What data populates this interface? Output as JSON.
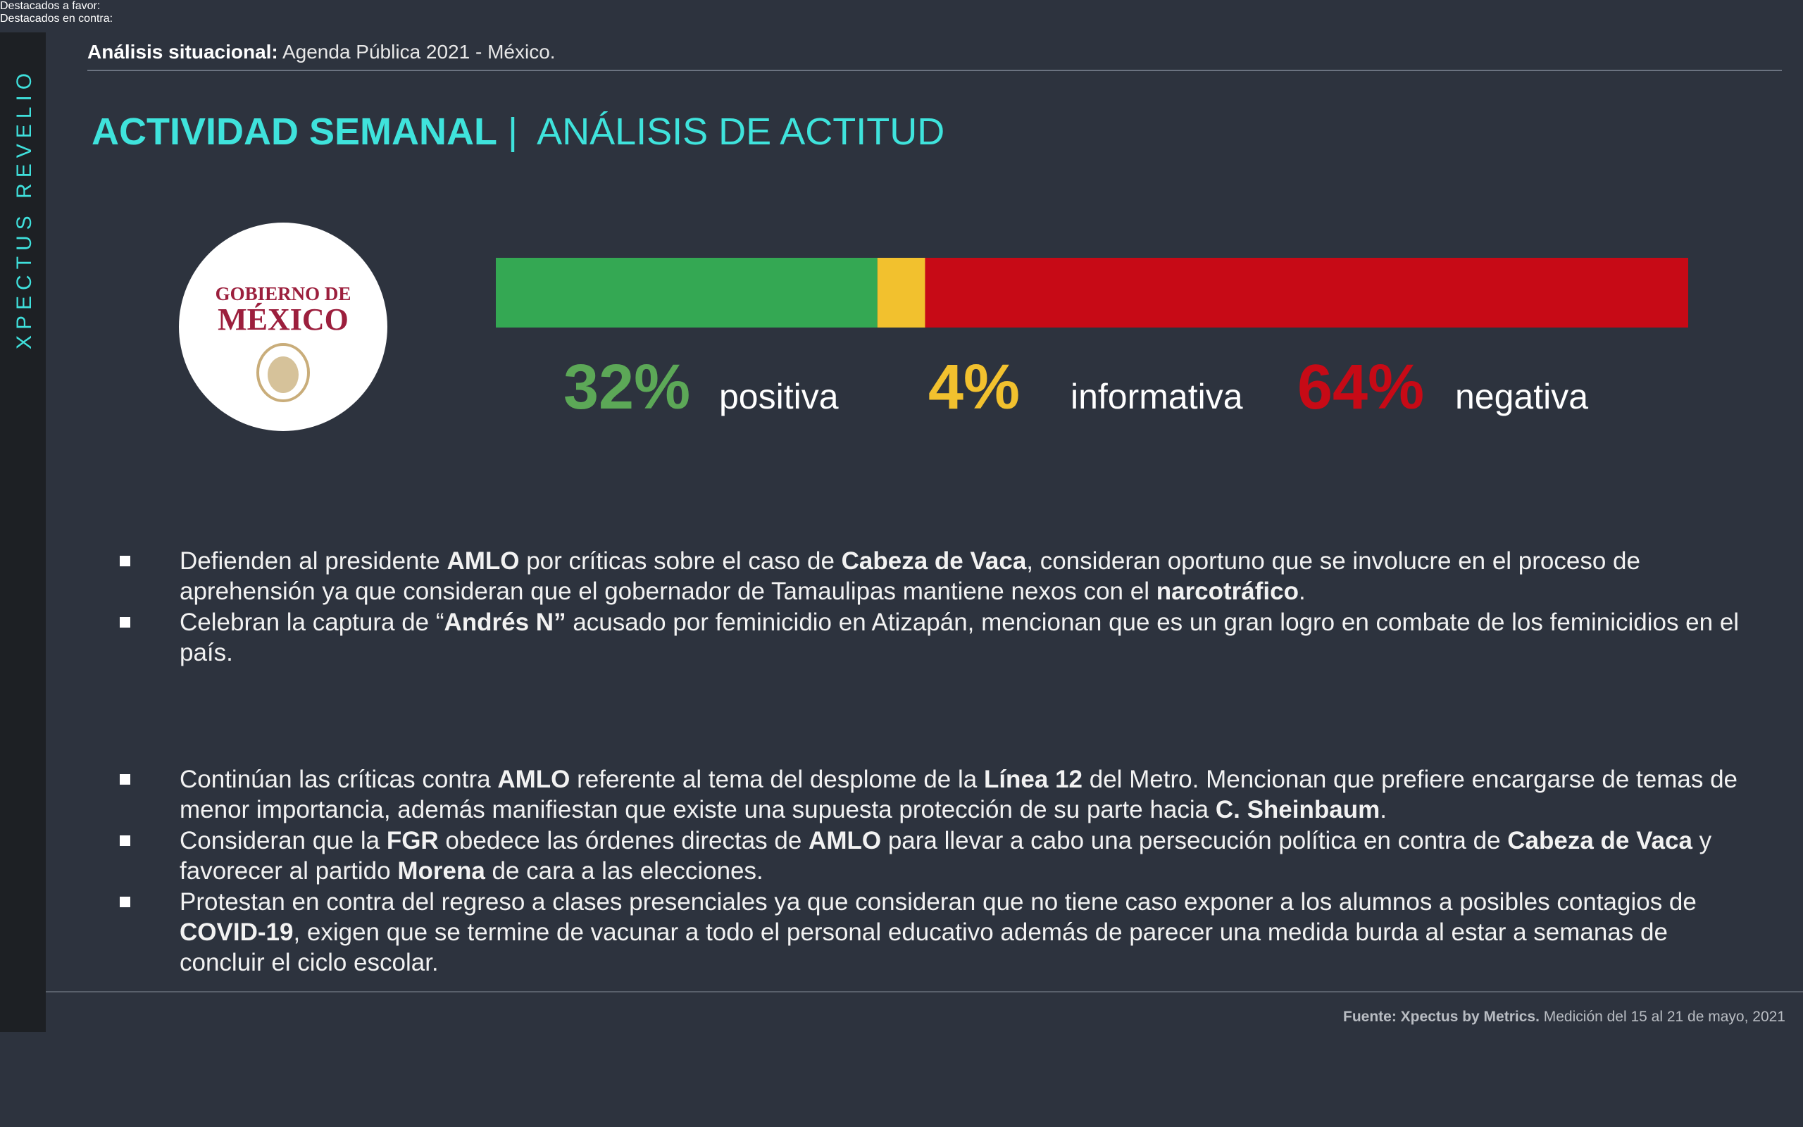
{
  "sidebar": "XPECTUS REVELIO",
  "header": {
    "label": "Análisis situacional:",
    "text": " Agenda Pública 2021 - México."
  },
  "title": {
    "main": "ACTIVIDAD SEMANAL",
    "separator": "|",
    "sub": "ANÁLISIS DE ACTITUD"
  },
  "logo": {
    "line1": "GOBIERNO DE",
    "line2": "MÉXICO"
  },
  "chart_data": {
    "type": "stacked_bar",
    "xlim": [
      0,
      100
    ],
    "series": [
      {
        "name": "positiva",
        "color": "#34a853",
        "label_color": "#5ca857",
        "values": [
          32
        ],
        "value_labels": [
          "32%"
        ]
      },
      {
        "name": "informativa",
        "color": "#f2c12e",
        "label_color": "#f2c12e",
        "values": [
          4
        ],
        "value_labels": [
          "4%"
        ]
      },
      {
        "name": "negativa",
        "color": "#c70a16",
        "label_color": "#c70a16",
        "values": [
          64
        ],
        "value_labels": [
          "64%"
        ]
      }
    ]
  },
  "sections": [
    {
      "title": "Destacados a favor:",
      "bullets": [
        [
          "Defienden al presidente ",
          "AMLO",
          " por críticas sobre el caso de ",
          "Cabeza de Vaca",
          ", consideran oportuno que se involucre en el proceso de aprehensión ya que consideran que el gobernador de Tamaulipas mantiene nexos con el ",
          "narcotráfico",
          "."
        ],
        [
          "Celebran la captura de “",
          "Andrés N”",
          " acusado por feminicidio en Atizapán, mencionan que es un gran logro en combate de los feminicidios en el país."
        ]
      ]
    },
    {
      "title": "Destacados en contra:",
      "bullets": [
        [
          "Continúan las críticas contra ",
          "AMLO",
          " referente al tema del desplome de la ",
          "Línea 12",
          " del Metro. Mencionan que prefiere encargarse de temas de menor importancia, además manifiestan que existe una supuesta protección de su parte hacia ",
          "C. Sheinbaum",
          "."
        ],
        [
          "Consideran que la ",
          "FGR",
          " obedece las órdenes directas de ",
          "AMLO",
          " para llevar a cabo una persecución política en contra de ",
          "Cabeza de Vaca",
          " y favorecer al partido ",
          "Morena",
          " de cara a las elecciones."
        ],
        [
          "Protestan en contra del regreso a clases presenciales ya que consideran que no tiene caso exponer a los alumnos a posibles contagios de ",
          "COVID-19",
          ", exigen que se termine de vacunar a todo el personal educativo además de parecer una medida burda al estar a semanas de concluir el ciclo escolar."
        ]
      ]
    }
  ],
  "footer": {
    "label": "Fuente: Xpectus by Metrics.",
    "text": " Medición del 15 al 21 de mayo, 2021"
  }
}
